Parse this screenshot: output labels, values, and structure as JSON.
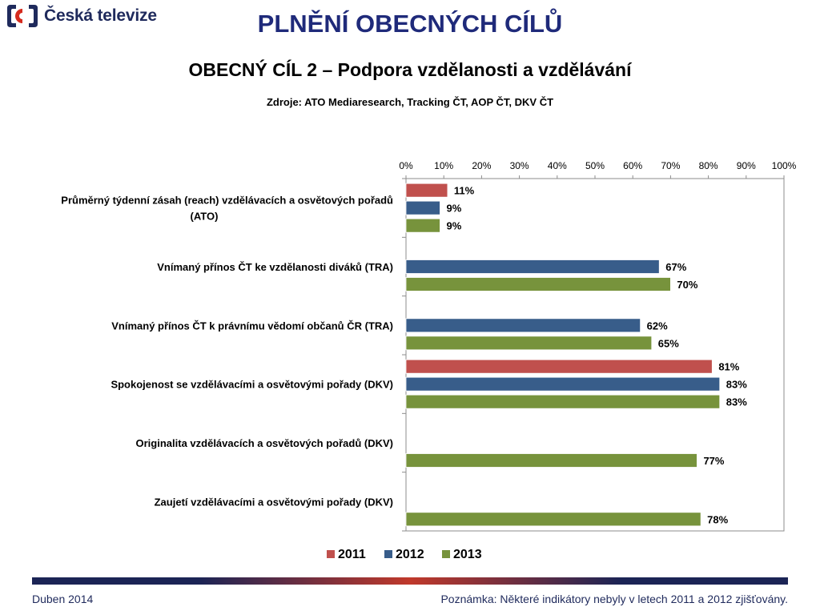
{
  "logo": {
    "text": "Česká televize"
  },
  "title": "PLNĚNÍ OBECNÝCH CÍLŮ",
  "subtitle": "OBECNÝ CÍL 2 – Podpora vzdělanosti a vzdělávání",
  "sources": "Zdroje: ATO Mediaresearch, Tracking ČT, AOP ČT, DKV ČT",
  "footer": {
    "date": "Duben 2014",
    "note": "Poznámka: Některé indikátory nebyly v letech 2011 a 2012 zjišťovány."
  },
  "chart_data": {
    "type": "bar",
    "orientation": "horizontal",
    "xlim": [
      0,
      100
    ],
    "x_ticks": [
      "0%",
      "10%",
      "20%",
      "30%",
      "40%",
      "50%",
      "60%",
      "70%",
      "80%",
      "90%",
      "100%"
    ],
    "x_axis_position": "top",
    "grid": false,
    "legend": "bottom",
    "colors": {
      "2011": "#c0504d",
      "2012": "#385d8a",
      "2013": "#77933c"
    },
    "categories": [
      [
        "Průměrný týdenní zásah (reach) vzdělávacích a osvětových pořadů",
        "(ATO)"
      ],
      [
        "Vnímaný přínos ČT ke vzdělanosti diváků (TRA)"
      ],
      [
        "Vnímaný přínos ČT k právnímu vědomí občanů ČR (TRA)"
      ],
      [
        "Spokojenost se vzdělávacími a osvětovými pořady (DKV)"
      ],
      [
        "Originalita vzdělávacích a osvětových pořadů (DKV)"
      ],
      [
        "Zaujetí vzdělávacími a osvětovými pořady (DKV)"
      ]
    ],
    "series": [
      {
        "name": "2011",
        "values": [
          11,
          null,
          null,
          81,
          null,
          null
        ]
      },
      {
        "name": "2012",
        "values": [
          9,
          67,
          62,
          83,
          null,
          null
        ]
      },
      {
        "name": "2013",
        "values": [
          9,
          70,
          65,
          83,
          77,
          78
        ]
      }
    ],
    "value_suffix": "%"
  }
}
